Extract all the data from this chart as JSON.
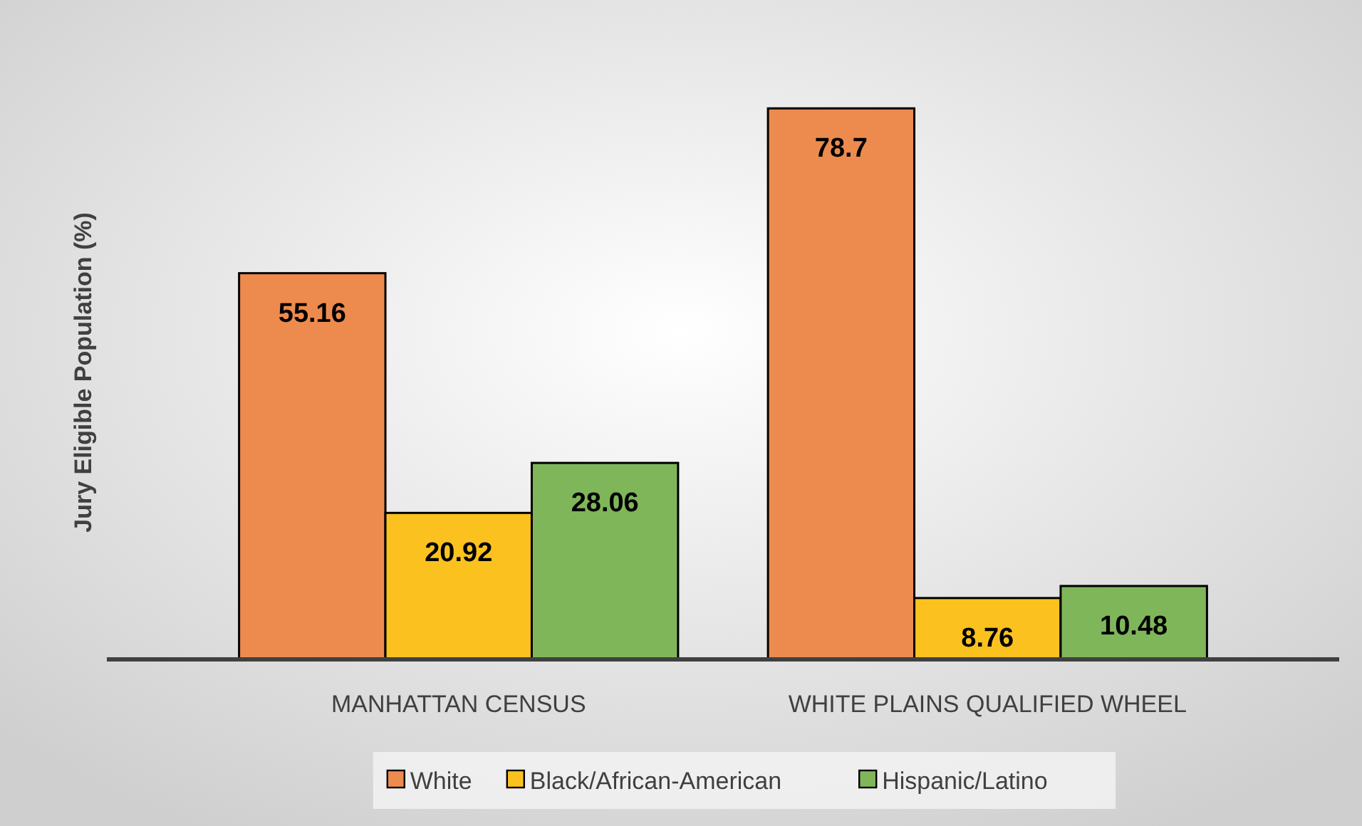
{
  "chart_data": {
    "type": "bar",
    "ylabel": "Jury Eligible Population (%)",
    "categories": [
      "MANHATTAN CENSUS",
      "WHITE PLAINS QUALIFIED WHEEL"
    ],
    "series": [
      {
        "name": "White",
        "color": "#ed8b4f",
        "values": [
          55.16,
          78.7
        ]
      },
      {
        "name": "Black/African-American",
        "color": "#fbc21f",
        "values": [
          20.92,
          8.76
        ]
      },
      {
        "name": "Hispanic/Latino",
        "color": "#7fb65a",
        "values": [
          28.06,
          10.48
        ]
      }
    ],
    "data_labels": true,
    "legend": "bottom",
    "grid": false
  }
}
